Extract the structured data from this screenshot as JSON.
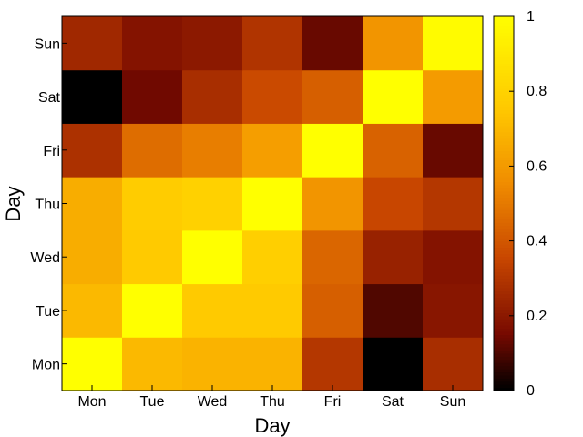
{
  "chart_data": {
    "type": "heatmap",
    "title": "",
    "xlabel": "Day",
    "ylabel": "Day",
    "x_categories": [
      "Mon",
      "Tue",
      "Wed",
      "Thu",
      "Fri",
      "Sat",
      "Sun"
    ],
    "y_categories": [
      "Mon",
      "Tue",
      "Wed",
      "Thu",
      "Fri",
      "Sat",
      "Sun"
    ],
    "values": [
      [
        1.0,
        0.7,
        0.68,
        0.68,
        0.3,
        0.0,
        0.27
      ],
      [
        0.7,
        1.0,
        0.76,
        0.76,
        0.42,
        0.1,
        0.19
      ],
      [
        0.66,
        0.76,
        1.0,
        0.78,
        0.44,
        0.23,
        0.18
      ],
      [
        0.66,
        0.77,
        0.79,
        1.0,
        0.58,
        0.35,
        0.3
      ],
      [
        0.28,
        0.46,
        0.51,
        0.61,
        1.0,
        0.43,
        0.13
      ],
      [
        0.0,
        0.14,
        0.27,
        0.36,
        0.42,
        1.0,
        0.6
      ],
      [
        0.25,
        0.18,
        0.2,
        0.29,
        0.13,
        0.58,
        0.98
      ]
    ],
    "value_range": [
      0,
      1
    ],
    "colorbar": {
      "ticks": [
        0,
        0.2,
        0.4,
        0.6,
        0.8,
        1
      ],
      "tick_labels": [
        "0",
        "0.2",
        "0.4",
        "0.6",
        "0.8",
        "1"
      ],
      "colormap": "black-red-orange-yellow"
    },
    "grid": false,
    "legend": "colorbar-right"
  }
}
